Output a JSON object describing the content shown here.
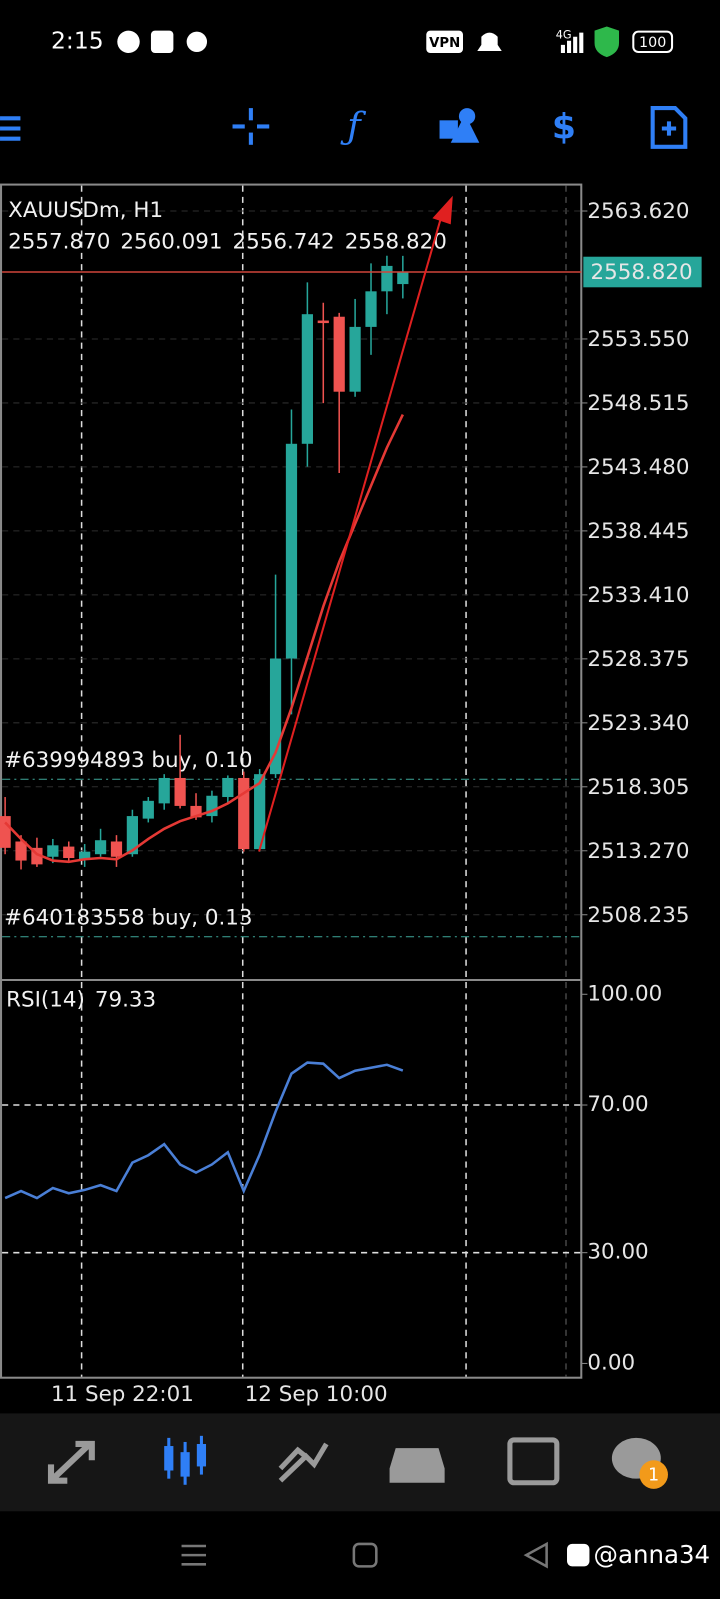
{
  "status_bar": {
    "time": "2:15",
    "vpn": "VPN",
    "network": "4G",
    "battery": "100"
  },
  "chart": {
    "type": "candlestick",
    "symbol": "XAUUSDm, H1",
    "ohlc_labels": [
      "2557.870",
      "2560.091",
      "2556.742",
      "2558.820"
    ],
    "ylim": [
      2503.18,
      2565.54
    ],
    "yticks": [
      {
        "value": 2563.62,
        "label": "2563.620"
      },
      {
        "value": 2553.55,
        "label": "2553.550"
      },
      {
        "value": 2548.515,
        "label": "2548.515"
      },
      {
        "value": 2543.48,
        "label": "2543.480"
      },
      {
        "value": 2538.445,
        "label": "2538.445"
      },
      {
        "value": 2533.41,
        "label": "2533.410"
      },
      {
        "value": 2528.375,
        "label": "2528.375"
      },
      {
        "value": 2523.34,
        "label": "2523.340"
      },
      {
        "value": 2518.305,
        "label": "2518.305"
      },
      {
        "value": 2513.27,
        "label": "2513.270"
      },
      {
        "value": 2508.235,
        "label": "2508.235"
      }
    ],
    "current_price": {
      "value": 2558.82,
      "label": "2558.820"
    },
    "orders": [
      {
        "label": "#639994893 buy, 0.10",
        "price": 2518.9
      },
      {
        "label": "#640183558 buy, 0.13",
        "price": 2506.5
      }
    ],
    "x_labels": [
      "11 Sep 22:01",
      "12 Sep 10:00"
    ],
    "candles": {
      "open": [
        2516.0,
        2514.0,
        2513.5,
        2512.8,
        2513.6,
        2512.6,
        2513.0,
        2514.0,
        2513.0,
        2515.8,
        2517.0,
        2519.0,
        2516.8,
        2516.0,
        2517.5,
        2519.0,
        2513.4,
        2519.3,
        2528.4,
        2545.3,
        2555.0,
        2555.3,
        2549.4,
        2554.5,
        2557.3,
        2557.87
      ],
      "high": [
        2517.5,
        2514.5,
        2514.3,
        2514.2,
        2514.0,
        2513.8,
        2515.0,
        2514.5,
        2516.5,
        2517.5,
        2519.3,
        2522.4,
        2517.8,
        2518.0,
        2519.2,
        2519.5,
        2519.7,
        2535.0,
        2548.0,
        2558.0,
        2556.4,
        2555.6,
        2556.7,
        2559.5,
        2560.1,
        2560.091
      ],
      "low": [
        2513.0,
        2511.8,
        2512.0,
        2512.3,
        2512.5,
        2512.0,
        2512.8,
        2512.0,
        2512.8,
        2515.5,
        2516.5,
        2516.6,
        2515.7,
        2515.5,
        2517.0,
        2513.2,
        2513.2,
        2519.0,
        2524.0,
        2543.5,
        2548.5,
        2543.0,
        2549.0,
        2552.3,
        2555.5,
        2556.742
      ],
      "close": [
        2513.5,
        2512.5,
        2512.2,
        2513.7,
        2512.7,
        2513.2,
        2514.1,
        2512.8,
        2516.0,
        2517.2,
        2519.0,
        2516.8,
        2515.9,
        2517.6,
        2519.0,
        2513.4,
        2519.3,
        2528.4,
        2545.3,
        2555.5,
        2554.8,
        2549.4,
        2554.5,
        2557.3,
        2559.3,
        2558.82
      ],
      "up_color": "#26a69a",
      "down_color": "#ef5350"
    },
    "ma": {
      "color": "#e53935",
      "values": [
        2515.5,
        2514.2,
        2513.0,
        2512.5,
        2512.4,
        2512.6,
        2512.7,
        2512.6,
        2513.3,
        2514.2,
        2515.0,
        2515.6,
        2516.0,
        2516.4,
        2517.0,
        2517.8,
        2518.6,
        2521.0,
        2524.5,
        2528.5,
        2532.5,
        2536.0,
        2539.0,
        2542.0,
        2545.0,
        2547.6
      ]
    },
    "rsi": {
      "label": "RSI(14)",
      "color": "#4a7fd6",
      "ylim": [
        0,
        100
      ],
      "yticks": [
        {
          "value": 100,
          "label": "100.00"
        },
        {
          "value": 70,
          "label": "70.00"
        },
        {
          "value": 30,
          "label": "30.00"
        },
        {
          "value": 0,
          "label": "0.00"
        }
      ],
      "values": [
        44.8,
        46.7,
        44.8,
        47.5,
        46.1,
        47.0,
        48.3,
        46.7,
        54.4,
        56.4,
        59.4,
        53.9,
        51.7,
        53.9,
        57.2,
        46.7,
        56.6,
        68.2,
        78.5,
        81.5,
        81.2,
        77.3,
        79.3,
        80.1,
        80.9,
        79.33
      ]
    }
  },
  "bottom_nav": {
    "badge": "1"
  },
  "watermark": "@anna34"
}
